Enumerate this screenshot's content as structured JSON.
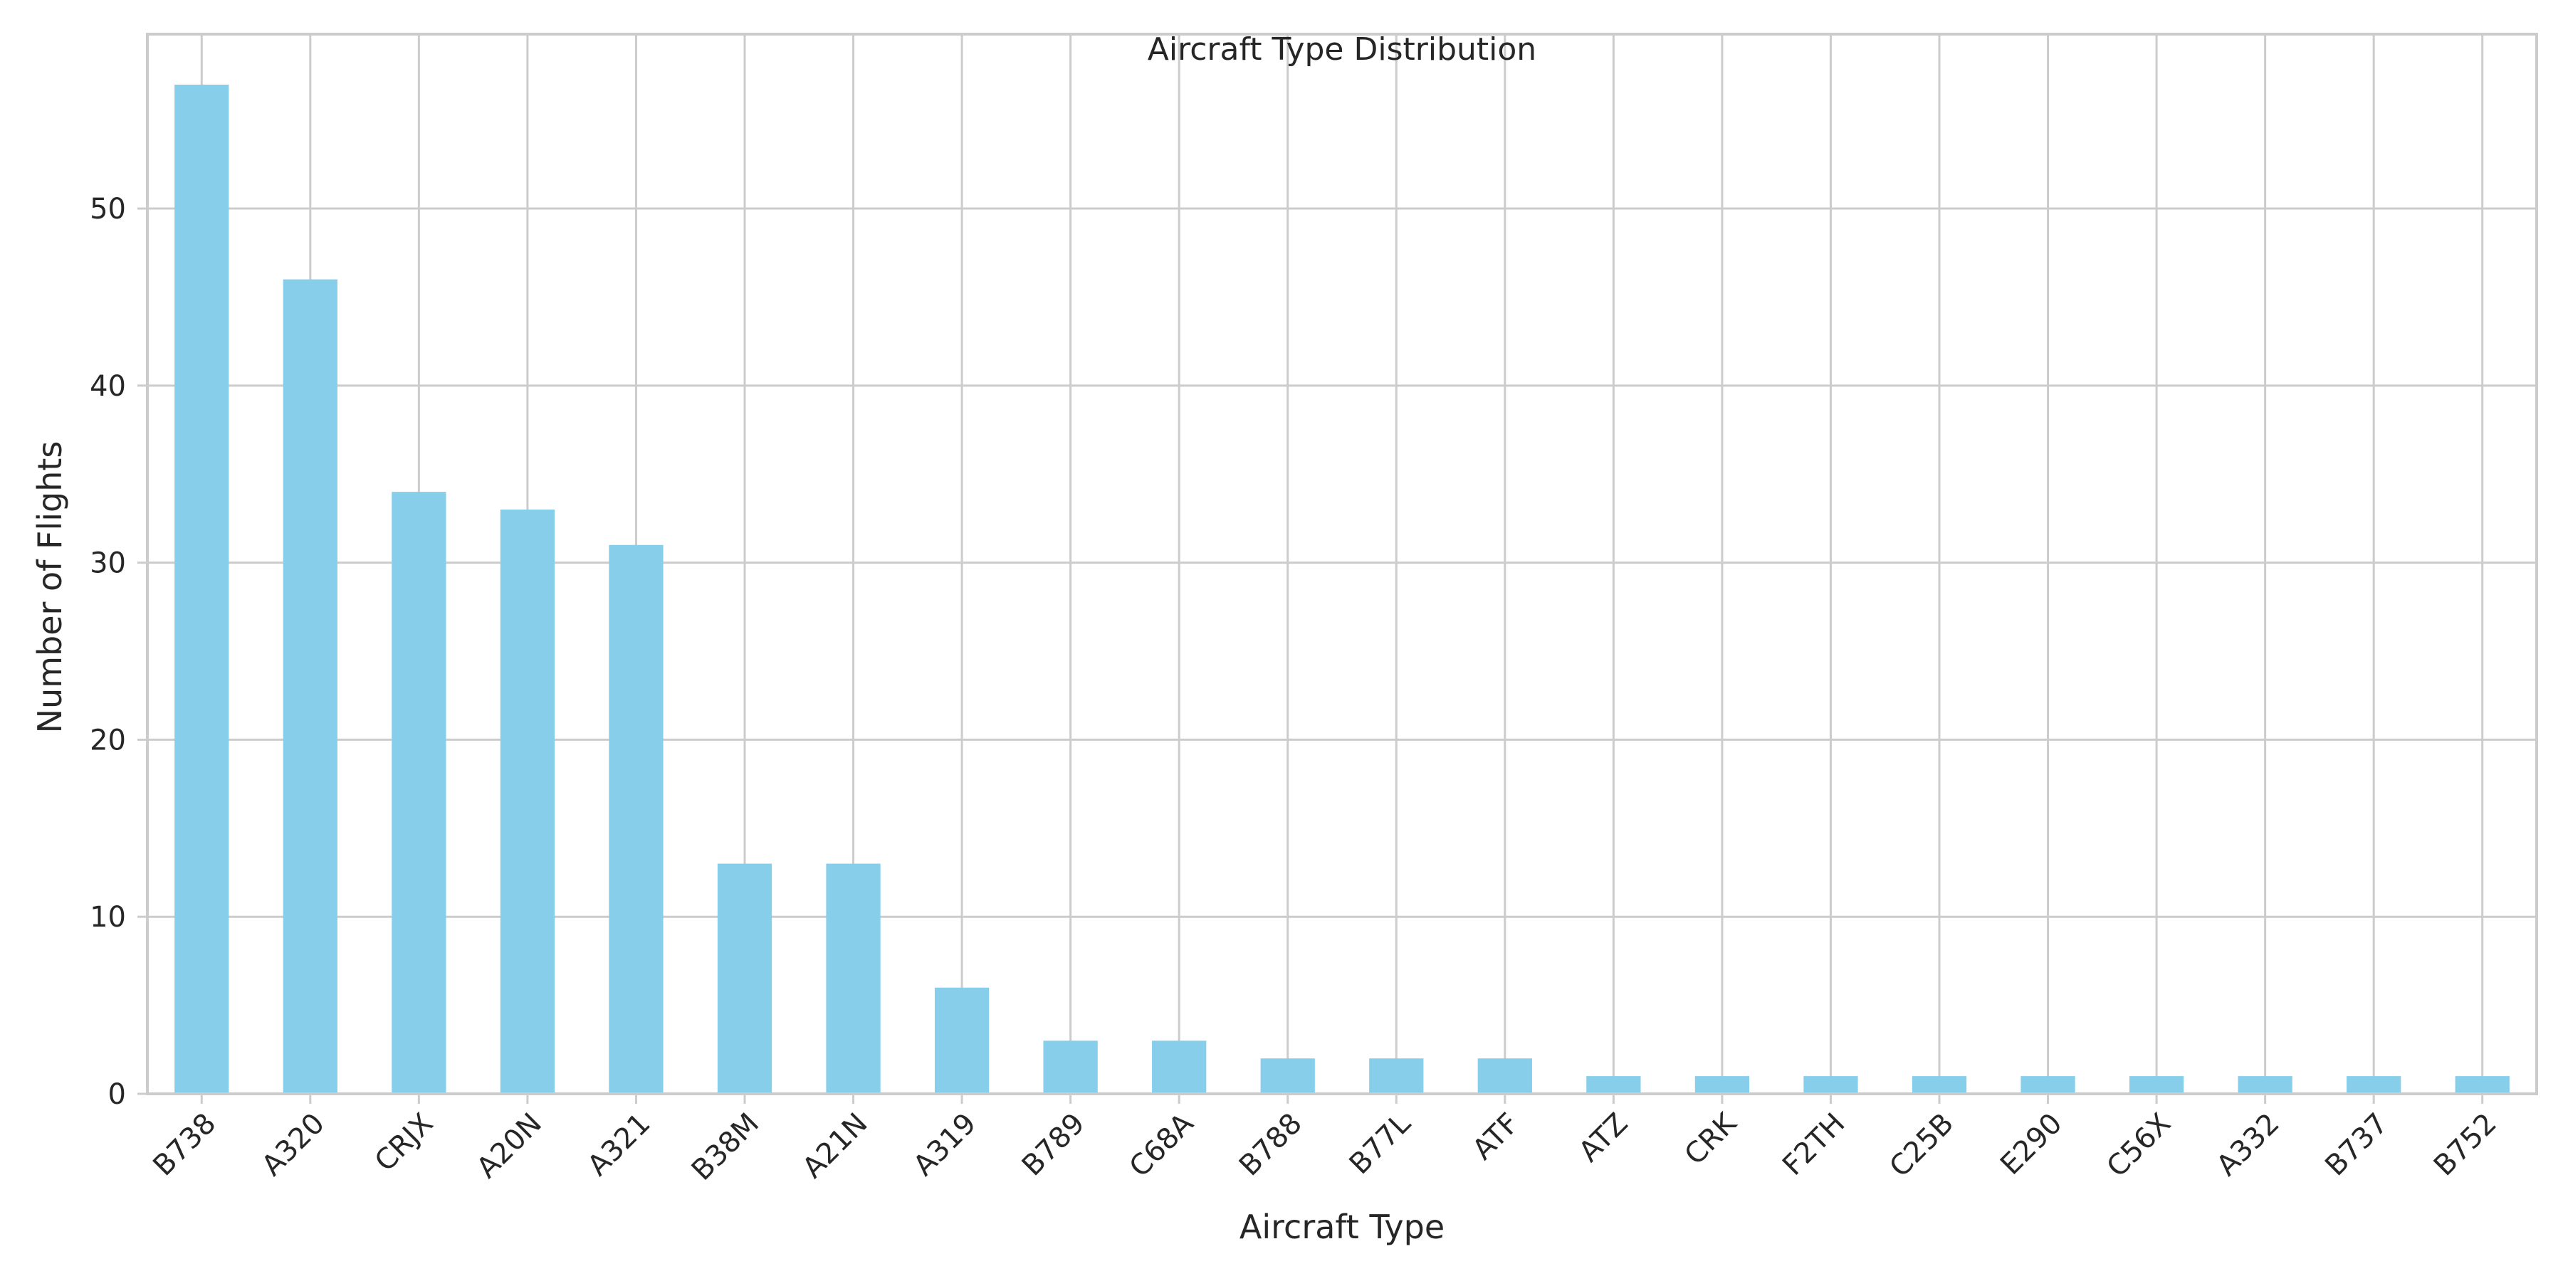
{
  "chart_data": {
    "type": "bar",
    "title": "Aircraft Type Distribution",
    "xlabel": "Aircraft Type",
    "ylabel": "Number of Flights",
    "categories": [
      "B738",
      "A320",
      "CRJX",
      "A20N",
      "A321",
      "B38M",
      "A21N",
      "A319",
      "B789",
      "C68A",
      "B788",
      "B77L",
      "ATF",
      "ATZ",
      "CRK",
      "F2TH",
      "C25B",
      "E290",
      "C56X",
      "A332",
      "B737",
      "B752"
    ],
    "values": [
      57,
      46,
      34,
      33,
      31,
      13,
      13,
      6,
      3,
      3,
      2,
      2,
      2,
      1,
      1,
      1,
      1,
      1,
      1,
      1,
      1,
      1
    ],
    "ylim": [
      0,
      59.85
    ],
    "yticks": [
      0,
      10,
      20,
      30,
      40,
      50
    ],
    "grid": true,
    "bar_color": "#87ceeb"
  }
}
